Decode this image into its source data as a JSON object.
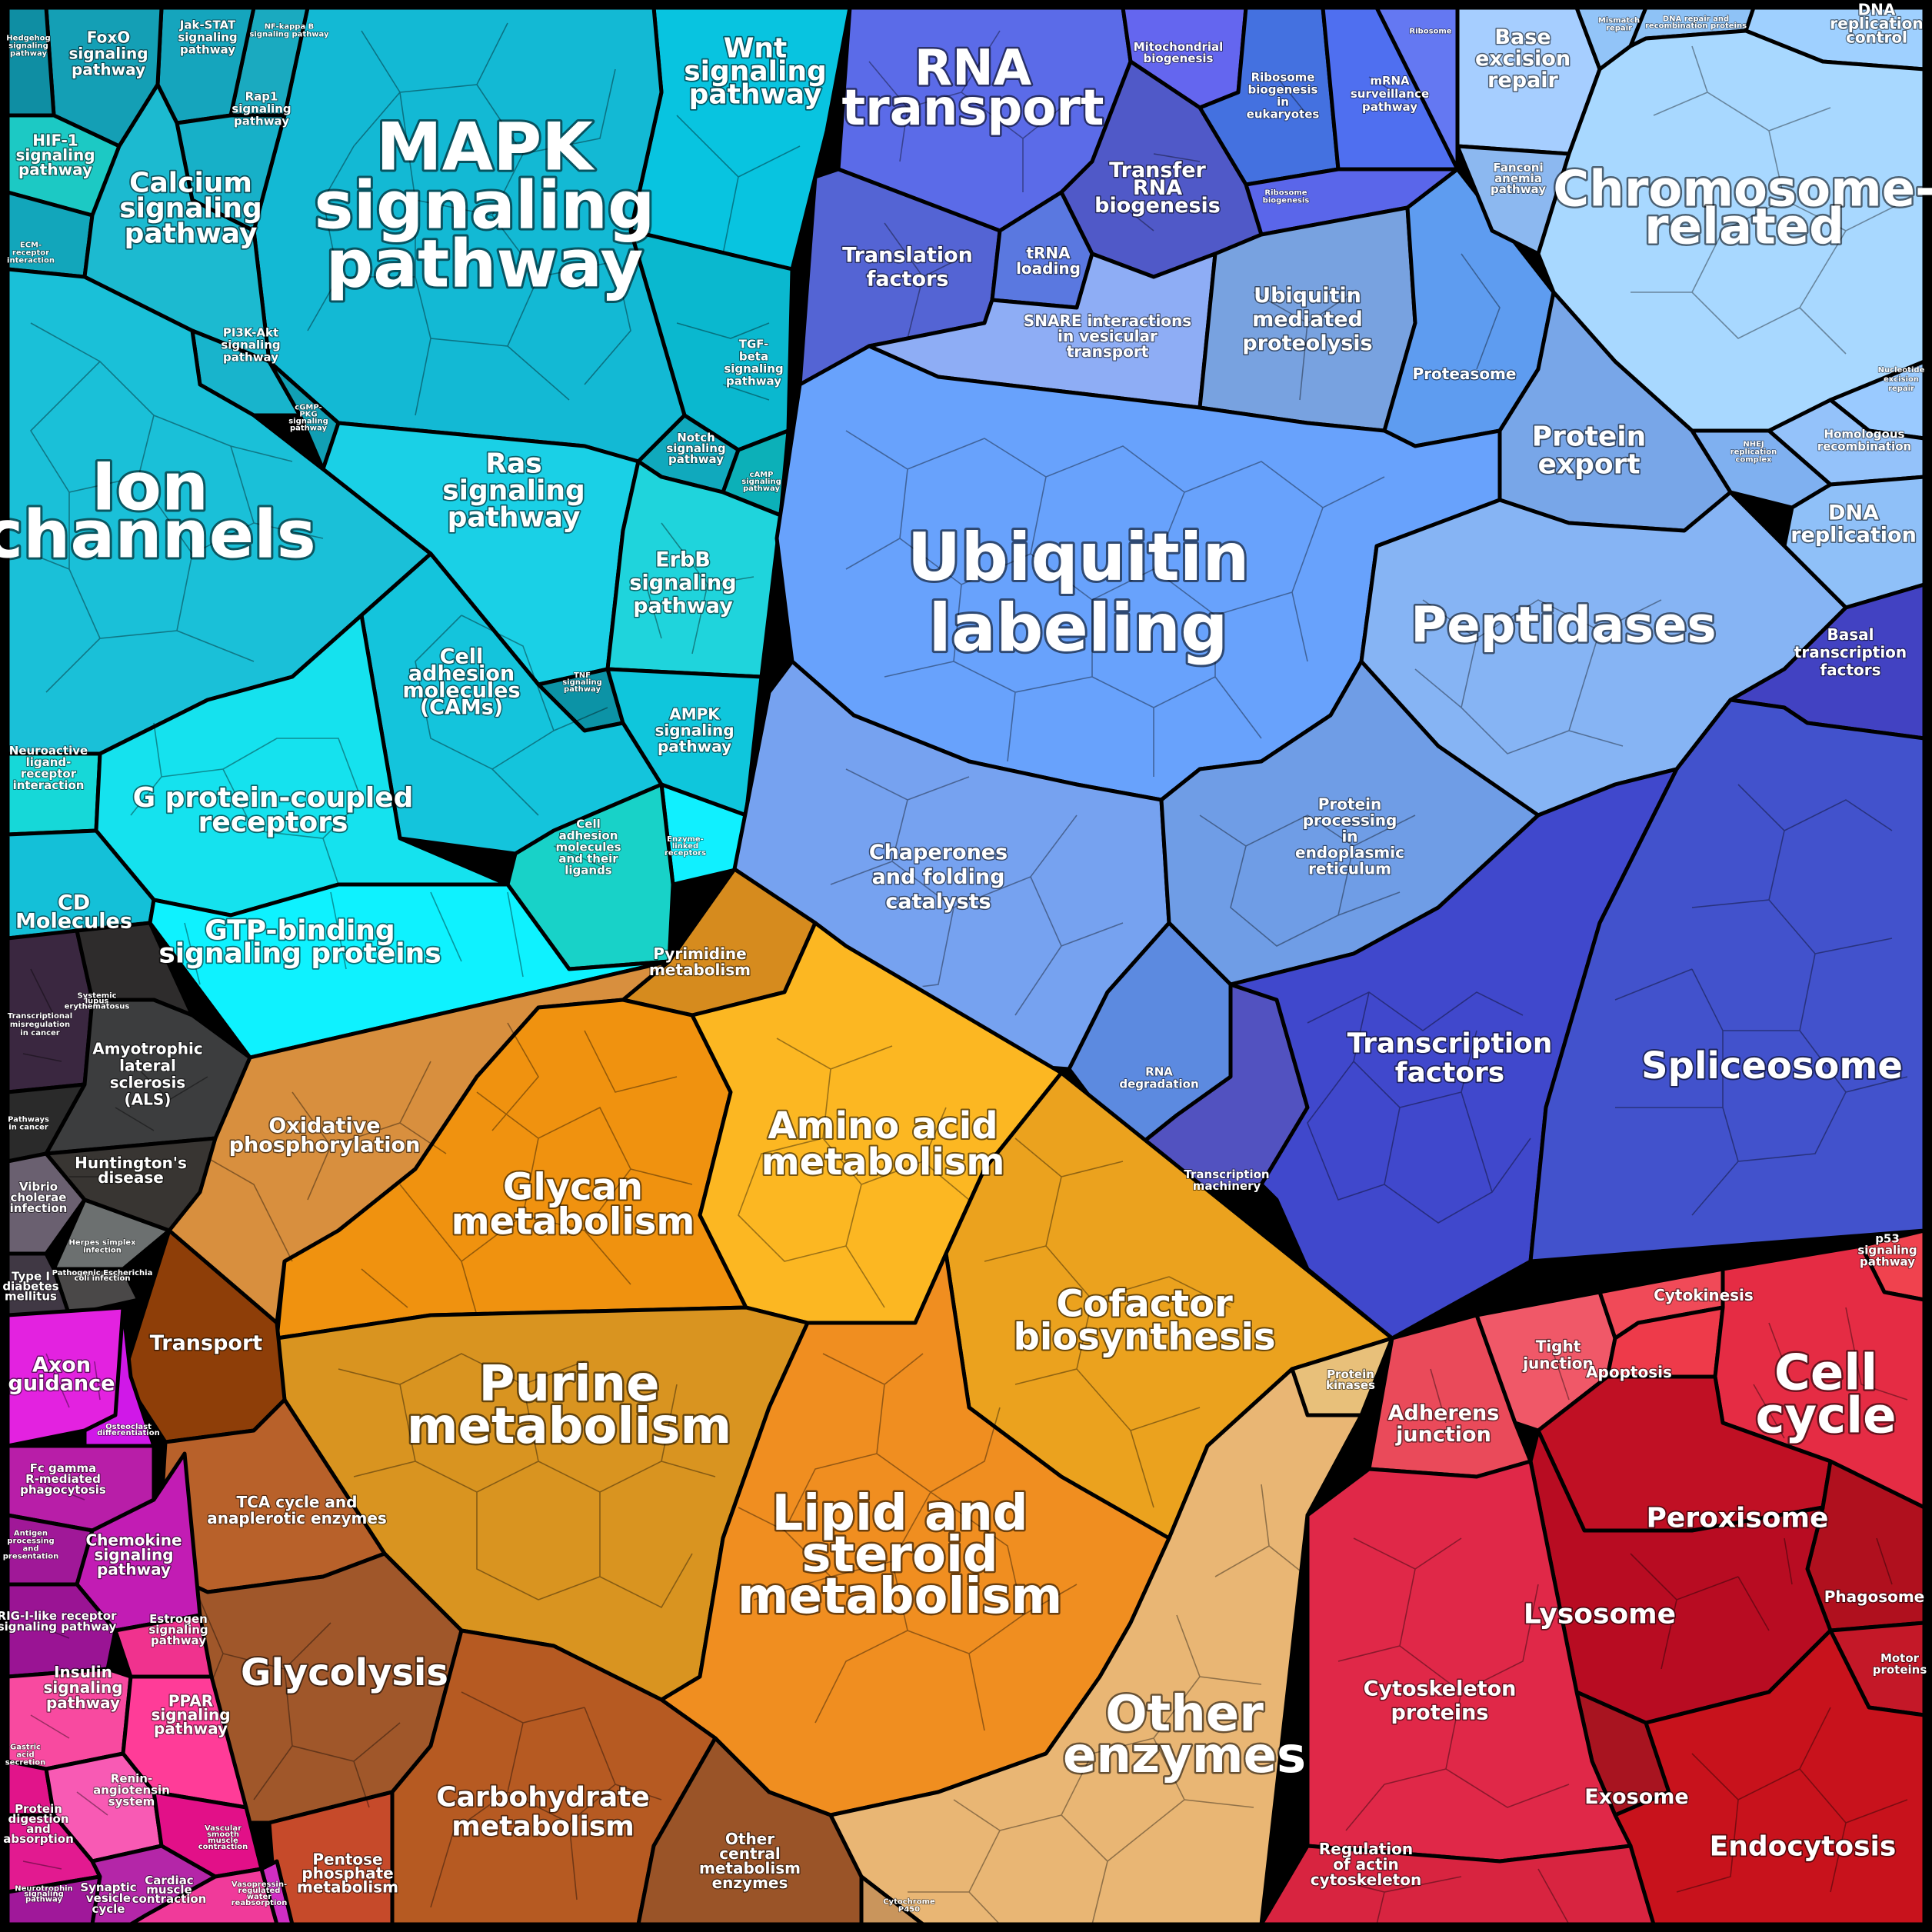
{
  "title": "",
  "groups": {
    "signaling": {
      "color": "#12c8d8"
    },
    "genetic": {
      "color": "#5f86ee"
    },
    "metabolism": {
      "color": "#e8930f"
    },
    "cellular": {
      "color": "#d8203a"
    },
    "disease": {
      "color": "#3a3a3a"
    },
    "organismal": {
      "color": "#cf22b4"
    }
  },
  "labels": {
    "mapk": [
      "MAPK",
      "signaling",
      "pathway"
    ],
    "ion_channels": [
      "Ion",
      "channels"
    ],
    "gpcr": [
      "G protein-coupled",
      "receptors"
    ],
    "gtp_binding": [
      "GTP-binding",
      "signaling proteins"
    ],
    "calcium": [
      "Calcium",
      "signaling",
      "pathway"
    ],
    "ras": [
      "Ras",
      "signaling",
      "pathway"
    ],
    "erbb": [
      "ErbB",
      "signaling",
      "pathway"
    ],
    "cams": [
      "Cell",
      "adhesion",
      "molecules",
      "(CAMs)"
    ],
    "wnt": [
      "Wnt",
      "signaling",
      "pathway"
    ],
    "ampk": [
      "AMPK",
      "signaling",
      "pathway"
    ],
    "foxo": [
      "FoxO",
      "signaling",
      "pathway"
    ],
    "jakstat": [
      "Jak-STAT",
      "signaling",
      "pathway"
    ],
    "nfkb": [
      "NF-kappa B",
      "signaling pathway"
    ],
    "hedgehog": [
      "Hedgehog",
      "signaling",
      "pathway"
    ],
    "hif1": [
      "HIF-1",
      "signaling",
      "pathway"
    ],
    "rap1": [
      "Rap1",
      "signaling",
      "pathway"
    ],
    "ecm": [
      "ECM-",
      "receptor",
      "interaction"
    ],
    "pi3k": [
      "PI3K-Akt",
      "signaling",
      "pathway"
    ],
    "cgmp": [
      "cGMP-",
      "PKG",
      "signaling",
      "pathway"
    ],
    "tgfb": [
      "TGF-",
      "beta",
      "signaling",
      "pathway"
    ],
    "notch": [
      "Notch",
      "signaling",
      "pathway"
    ],
    "camp": [
      "cAMP",
      "signaling",
      "pathway"
    ],
    "tnf": [
      "TNF",
      "signaling",
      "pathway"
    ],
    "neuroactive": [
      "Neuroactive",
      "ligand-",
      "receptor",
      "interaction"
    ],
    "cd": [
      "CD",
      "Molecules"
    ],
    "cell_adh_ligands": [
      "Cell",
      "adhesion",
      "molecules",
      "and their",
      "ligands"
    ],
    "enzyme_linked": [
      "Enzyme-",
      "linked",
      "receptors"
    ],
    "ubiquitin_labeling": [
      "Ubiquitin",
      "labeling"
    ],
    "rna_transport": [
      "RNA",
      "transport"
    ],
    "mito_bio": [
      "Mitochondrial",
      "biogenesis"
    ],
    "ribosome_bio_euk": [
      "Ribosome",
      "biogenesis",
      "in",
      "eukaryotes"
    ],
    "mrna_surv": [
      "mRNA",
      "surveillance",
      "pathway"
    ],
    "ribosome": [
      "Ribosome"
    ],
    "ribosome_biogenesis": [
      "Ribosome",
      "biogenesis"
    ],
    "transfer_rna": [
      "Transfer",
      "RNA",
      "biogenesis"
    ],
    "translation_factors": [
      "Translation",
      "factors"
    ],
    "trna_loading": [
      "tRNA",
      "loading"
    ],
    "snare": [
      "SNARE interactions",
      "in vesicular",
      "transport"
    ],
    "ubiq_proteolysis": [
      "Ubiquitin",
      "mediated",
      "proteolysis"
    ],
    "proteasome": [
      "Proteasome"
    ],
    "chromosome": [
      "Chromosome-",
      "related"
    ],
    "base_excision": [
      "Base",
      "excision",
      "repair"
    ],
    "mismatch": [
      "Mismatch",
      "repair"
    ],
    "dna_repair_recomb": [
      "DNA repair and",
      "recombination proteins"
    ],
    "dna_rep_control": [
      "DNA",
      "replication",
      "control"
    ],
    "fanconi": [
      "Fanconi",
      "anemia",
      "pathway"
    ],
    "nucleotide_excision": [
      "Nucleotide",
      "excision",
      "repair"
    ],
    "homologous": [
      "Homologous",
      "recombination"
    ],
    "nhej": [
      "NHEJ",
      "replication",
      "complex"
    ],
    "dna_replication": [
      "DNA",
      "replication"
    ],
    "protein_export": [
      "Protein",
      "export"
    ],
    "peptidases": [
      "Peptidases"
    ],
    "basal_tf": [
      "Basal",
      "transcription",
      "factors"
    ],
    "chaperones": [
      "Chaperones",
      "and folding",
      "catalysts"
    ],
    "protein_er": [
      "Protein",
      "processing",
      "in",
      "endoplasmic",
      "reticulum"
    ],
    "rna_degradation": [
      "RNA",
      "degradation"
    ],
    "transcription_factors": [
      "Transcription",
      "factors"
    ],
    "spliceosome": [
      "Spliceosome"
    ],
    "transcription_machinery": [
      "Transcription",
      "machinery"
    ],
    "pyrimidine": [
      "Pyrimidine",
      "metabolism"
    ],
    "oxphos": [
      "Oxidative",
      "phosphorylation"
    ],
    "glycan": [
      "Glycan",
      "metabolism"
    ],
    "amino_acid": [
      "Amino acid",
      "metabolism"
    ],
    "cofactor": [
      "Cofactor",
      "biosynthesis"
    ],
    "purine": [
      "Purine",
      "metabolism"
    ],
    "lipid": [
      "Lipid and",
      "steroid",
      "metabolism"
    ],
    "transport": [
      "Transport"
    ],
    "tca": [
      "TCA cycle and",
      "anaplerotic enzymes"
    ],
    "glycolysis": [
      "Glycolysis"
    ],
    "carbohydrate": [
      "Carbohydrate",
      "metabolism"
    ],
    "pentose": [
      "Pentose",
      "phosphate",
      "metabolism"
    ],
    "other_central": [
      "Other",
      "central",
      "metabolism",
      "enzymes"
    ],
    "other_enzymes": [
      "Other",
      "enzymes"
    ],
    "protein_kinases": [
      "Protein",
      "kinases"
    ],
    "cytochrome": [
      "Cytochrome",
      "P450"
    ],
    "cell_cycle": [
      "Cell",
      "cycle"
    ],
    "cytokinesis": [
      "Cytokinesis"
    ],
    "p53": [
      "p53",
      "signaling",
      "pathway"
    ],
    "tight_junction": [
      "Tight",
      "junction"
    ],
    "apoptosis": [
      "Apoptosis"
    ],
    "adherens": [
      "Adherens",
      "junction"
    ],
    "peroxisome": [
      "Peroxisome"
    ],
    "phagosome": [
      "Phagosome"
    ],
    "lysosome": [
      "Lysosome"
    ],
    "motor_proteins": [
      "Motor",
      "proteins"
    ],
    "exosome": [
      "Exosome"
    ],
    "endocytosis": [
      "Endocytosis"
    ],
    "cytoskeleton": [
      "Cytoskeleton",
      "proteins"
    ],
    "reg_actin": [
      "Regulation",
      "of actin",
      "cytoskeleton"
    ],
    "transcr_misreg": [
      "Transcriptional",
      "misregulation",
      "in cancer"
    ],
    "sle": [
      "Systemic",
      "lupus",
      "erythematosus"
    ],
    "als": [
      "Amyotrophic",
      "lateral",
      "sclerosis",
      "(ALS)"
    ],
    "pathways_cancer": [
      "Pathways",
      "in cancer"
    ],
    "huntington": [
      "Huntington's",
      "disease"
    ],
    "vibrio": [
      "Vibrio",
      "cholerae",
      "infection"
    ],
    "herpes": [
      "Herpes simplex",
      "infection"
    ],
    "pathogenic_ecoli": [
      "Pathogenic Escherichia",
      "coli infection"
    ],
    "type1_diabetes": [
      "Type I",
      "diabetes",
      "mellitus"
    ],
    "axon": [
      "Axon",
      "guidance"
    ],
    "osteoclast": [
      "Osteoclast",
      "differentiation"
    ],
    "fc_gamma": [
      "Fc gamma",
      "R-mediated",
      "phagocytosis"
    ],
    "antigen": [
      "Antigen",
      "processing",
      "and",
      "presentation"
    ],
    "chemokine": [
      "Chemokine",
      "signaling",
      "pathway"
    ],
    "rig_i": [
      "RIG-I-like receptor",
      "signaling pathway"
    ],
    "estrogen": [
      "Estrogen",
      "signaling",
      "pathway"
    ],
    "insulin": [
      "Insulin",
      "signaling",
      "pathway"
    ],
    "ppar": [
      "PPAR",
      "signaling",
      "pathway"
    ],
    "gastric": [
      "Gastric",
      "acid",
      "secretion"
    ],
    "renin": [
      "Renin-",
      "angiotensin",
      "system"
    ],
    "vascular": [
      "Vascular",
      "smooth",
      "muscle",
      "contraction"
    ],
    "protein_digestion": [
      "Protein",
      "digestion",
      "and",
      "absorption"
    ],
    "neurotrophin": [
      "Neurotrophin",
      "signaling",
      "pathway"
    ],
    "synaptic": [
      "Synaptic",
      "vesicle",
      "cycle"
    ],
    "cardiac": [
      "Cardiac",
      "muscle",
      "contraction"
    ],
    "vasopressin": [
      "Vasopressin-",
      "regulated",
      "water",
      "reabsorption"
    ]
  }
}
